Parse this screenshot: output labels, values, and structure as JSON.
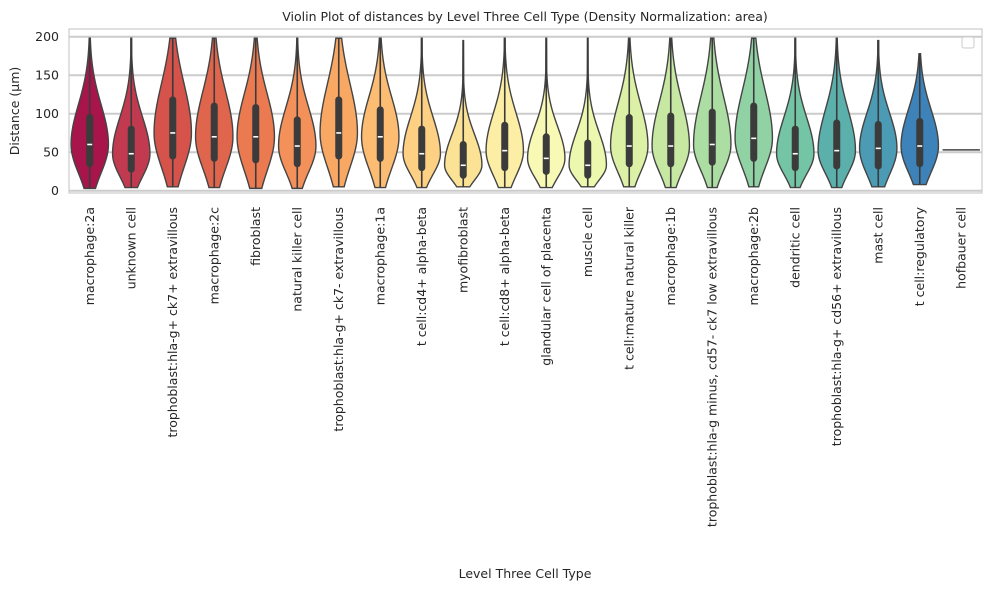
{
  "chart_data": {
    "type": "violin",
    "title": "Violin Plot of distances by Level Three Cell Type (Density Normalization: area)",
    "xlabel": "Level Three Cell Type",
    "ylabel": "Distance (μm)",
    "ylim": [
      -3,
      210
    ],
    "yticks": [
      0,
      50,
      100,
      150,
      200
    ],
    "grid": true,
    "legend": "top-right (empty)",
    "palette": "Spectral",
    "categories": [
      "macrophage:2a",
      "unknown cell",
      "trophoblast:hla-g+ ck7+ extravillous",
      "macrophage:2c",
      "fibroblast",
      "natural killer cell",
      "trophoblast:hla-g+ ck7- extravillous",
      "macrophage:1a",
      "t cell:cd4+ alpha-beta",
      "myofibroblast",
      "t cell:cd8+ alpha-beta",
      "glandular cell of placenta",
      "muscle cell",
      "t cell:mature natural killer",
      "macrophage:1b",
      "trophoblast:hla-g minus, cd57- ck7 low extravillous",
      "macrophage:2b",
      "dendritic cell",
      "trophoblast:hla-g+ cd56+ extravillous",
      "mast cell",
      "t cell:regulatory",
      "hofbauer cell"
    ],
    "series": [
      {
        "min": 3,
        "q1": 35,
        "median": 60,
        "q3": 95,
        "max": 198,
        "color": "#a8154a"
      },
      {
        "min": 4,
        "q1": 28,
        "median": 48,
        "q3": 80,
        "max": 198,
        "color": "#c23a4f"
      },
      {
        "min": 5,
        "q1": 45,
        "median": 75,
        "q3": 118,
        "max": 198,
        "color": "#d5534b"
      },
      {
        "min": 4,
        "q1": 42,
        "median": 70,
        "q3": 110,
        "max": 198,
        "color": "#e0654d"
      },
      {
        "min": 3,
        "q1": 40,
        "median": 70,
        "q3": 108,
        "max": 198,
        "color": "#ec7a51"
      },
      {
        "min": 3,
        "q1": 35,
        "median": 58,
        "q3": 92,
        "max": 198,
        "color": "#f4905a"
      },
      {
        "min": 5,
        "q1": 45,
        "median": 75,
        "q3": 118,
        "max": 198,
        "color": "#f9a864"
      },
      {
        "min": 4,
        "q1": 42,
        "median": 70,
        "q3": 105,
        "max": 198,
        "color": "#fcbd72"
      },
      {
        "min": 4,
        "q1": 30,
        "median": 48,
        "q3": 80,
        "max": 198,
        "color": "#fdd083"
      },
      {
        "min": 5,
        "q1": 20,
        "median": 33,
        "q3": 60,
        "max": 195,
        "color": "#fce295"
      },
      {
        "min": 4,
        "q1": 30,
        "median": 52,
        "q3": 85,
        "max": 198,
        "color": "#fdeea5"
      },
      {
        "min": 4,
        "q1": 25,
        "median": 42,
        "q3": 70,
        "max": 198,
        "color": "#f8f9b5"
      },
      {
        "min": 5,
        "q1": 20,
        "median": 33,
        "q3": 62,
        "max": 198,
        "color": "#edf8af"
      },
      {
        "min": 5,
        "q1": 35,
        "median": 58,
        "q3": 95,
        "max": 198,
        "color": "#dcf1a6"
      },
      {
        "min": 4,
        "q1": 35,
        "median": 58,
        "q3": 97,
        "max": 198,
        "color": "#c6e8a2"
      },
      {
        "min": 4,
        "q1": 37,
        "median": 60,
        "q3": 102,
        "max": 198,
        "color": "#acdda2"
      },
      {
        "min": 5,
        "q1": 42,
        "median": 68,
        "q3": 110,
        "max": 198,
        "color": "#91d2a4"
      },
      {
        "min": 4,
        "q1": 30,
        "median": 48,
        "q3": 80,
        "max": 198,
        "color": "#73c5a5"
      },
      {
        "min": 4,
        "q1": 32,
        "median": 52,
        "q3": 88,
        "max": 198,
        "color": "#5bb0ac"
      },
      {
        "min": 5,
        "q1": 32,
        "median": 55,
        "q3": 86,
        "max": 195,
        "color": "#4b9bb5"
      },
      {
        "min": 8,
        "q1": 35,
        "median": 58,
        "q3": 90,
        "max": 178,
        "color": "#3d83b9"
      },
      {
        "min": 53,
        "q1": 53,
        "median": 53,
        "q3": 53,
        "max": 53,
        "color": "#5e4fa2"
      }
    ]
  }
}
